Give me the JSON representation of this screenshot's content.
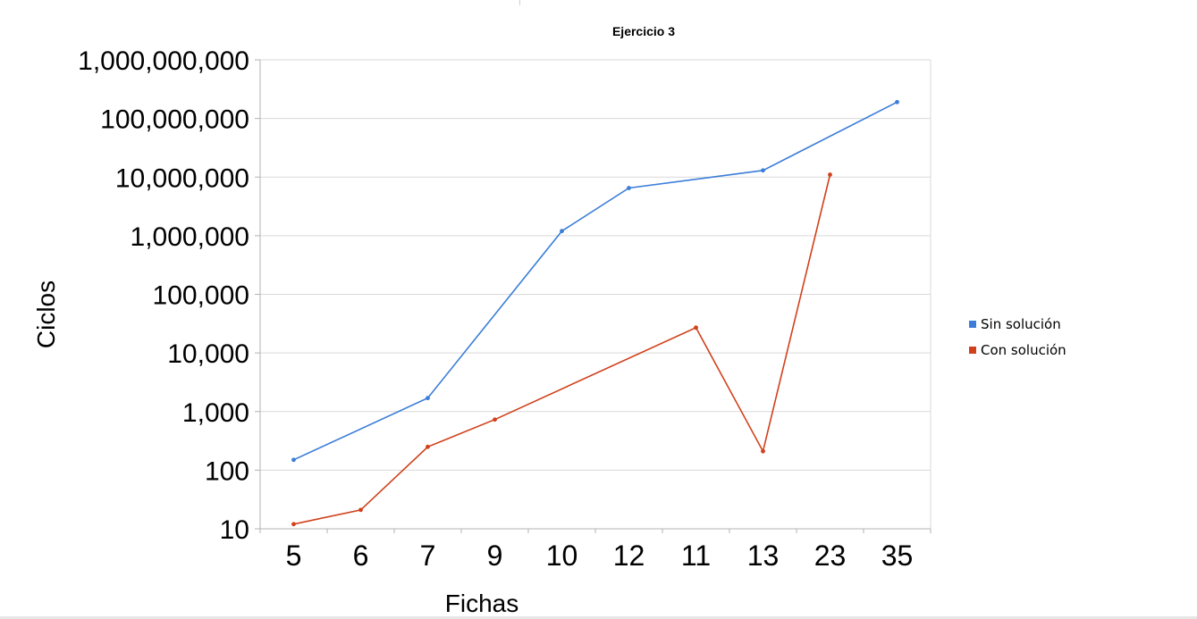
{
  "chart_data": {
    "type": "line",
    "title": "Ejercicio 3",
    "xlabel": "Fichas",
    "ylabel": "Ciclos",
    "categories": [
      "5",
      "6",
      "7",
      "9",
      "10",
      "12",
      "11",
      "13",
      "23",
      "35"
    ],
    "yscale": "log",
    "ylim": [
      10,
      1000000000
    ],
    "yticks": [
      "10",
      "100",
      "1,000",
      "10,000",
      "100,000",
      "1,000,000",
      "10,000,000",
      "100,000,000",
      "1,000,000,000"
    ],
    "grid": true,
    "legend_position": "right",
    "series": [
      {
        "name": "Sin solución",
        "color": "#3b7dd8",
        "values": [
          150,
          null,
          1700,
          null,
          1200000,
          6500000,
          null,
          13000000,
          null,
          190000000
        ]
      },
      {
        "name": "Con solución",
        "color": "#d0401b",
        "values": [
          12,
          21,
          250,
          730,
          null,
          null,
          27000,
          210,
          11000000,
          null
        ]
      }
    ]
  }
}
